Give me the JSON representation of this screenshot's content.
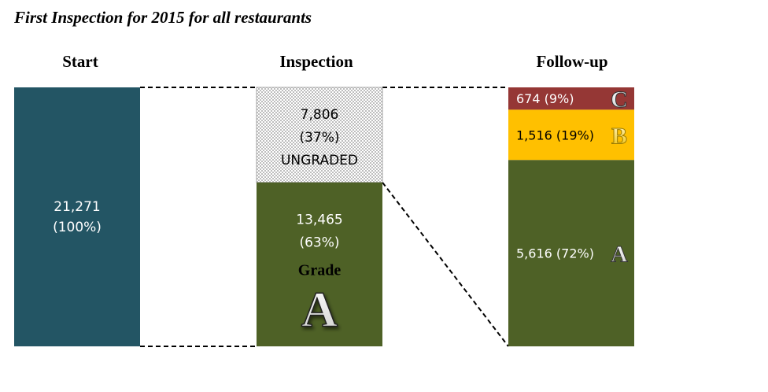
{
  "title": "First Inspection for 2015 for all restaurants",
  "colors": {
    "start": "#235564",
    "ungraded_fill": "#e6e6e6",
    "grade_a": "#4e6126",
    "grade_b": "#ffc000",
    "grade_c": "#953735",
    "connector": "#000000"
  },
  "chart_data": {
    "type": "bar",
    "subtype": "stacked-funnel",
    "stages": [
      "Start",
      "Inspection",
      "Follow-up"
    ],
    "start": {
      "value": 21271,
      "value_label": "21,271",
      "percent_label": "(100%)"
    },
    "inspection": [
      {
        "key": "ungraded",
        "value": 7806,
        "value_label": "7,806",
        "percent_label": "(37%)",
        "status_label": "UNGRADED"
      },
      {
        "key": "grade_a",
        "value": 13465,
        "value_label": "13,465",
        "percent_label": "(63%)",
        "grade_word": "Grade",
        "grade_letter": "A"
      }
    ],
    "follow_up": [
      {
        "key": "grade_c",
        "value": 674,
        "label": "674 (9%)",
        "letter": "C"
      },
      {
        "key": "grade_b",
        "value": 1516,
        "label": "1,516 (19%)",
        "letter": "B"
      },
      {
        "key": "grade_a",
        "value": 5616,
        "label": "5,616 (72%)",
        "letter": "A"
      }
    ]
  }
}
